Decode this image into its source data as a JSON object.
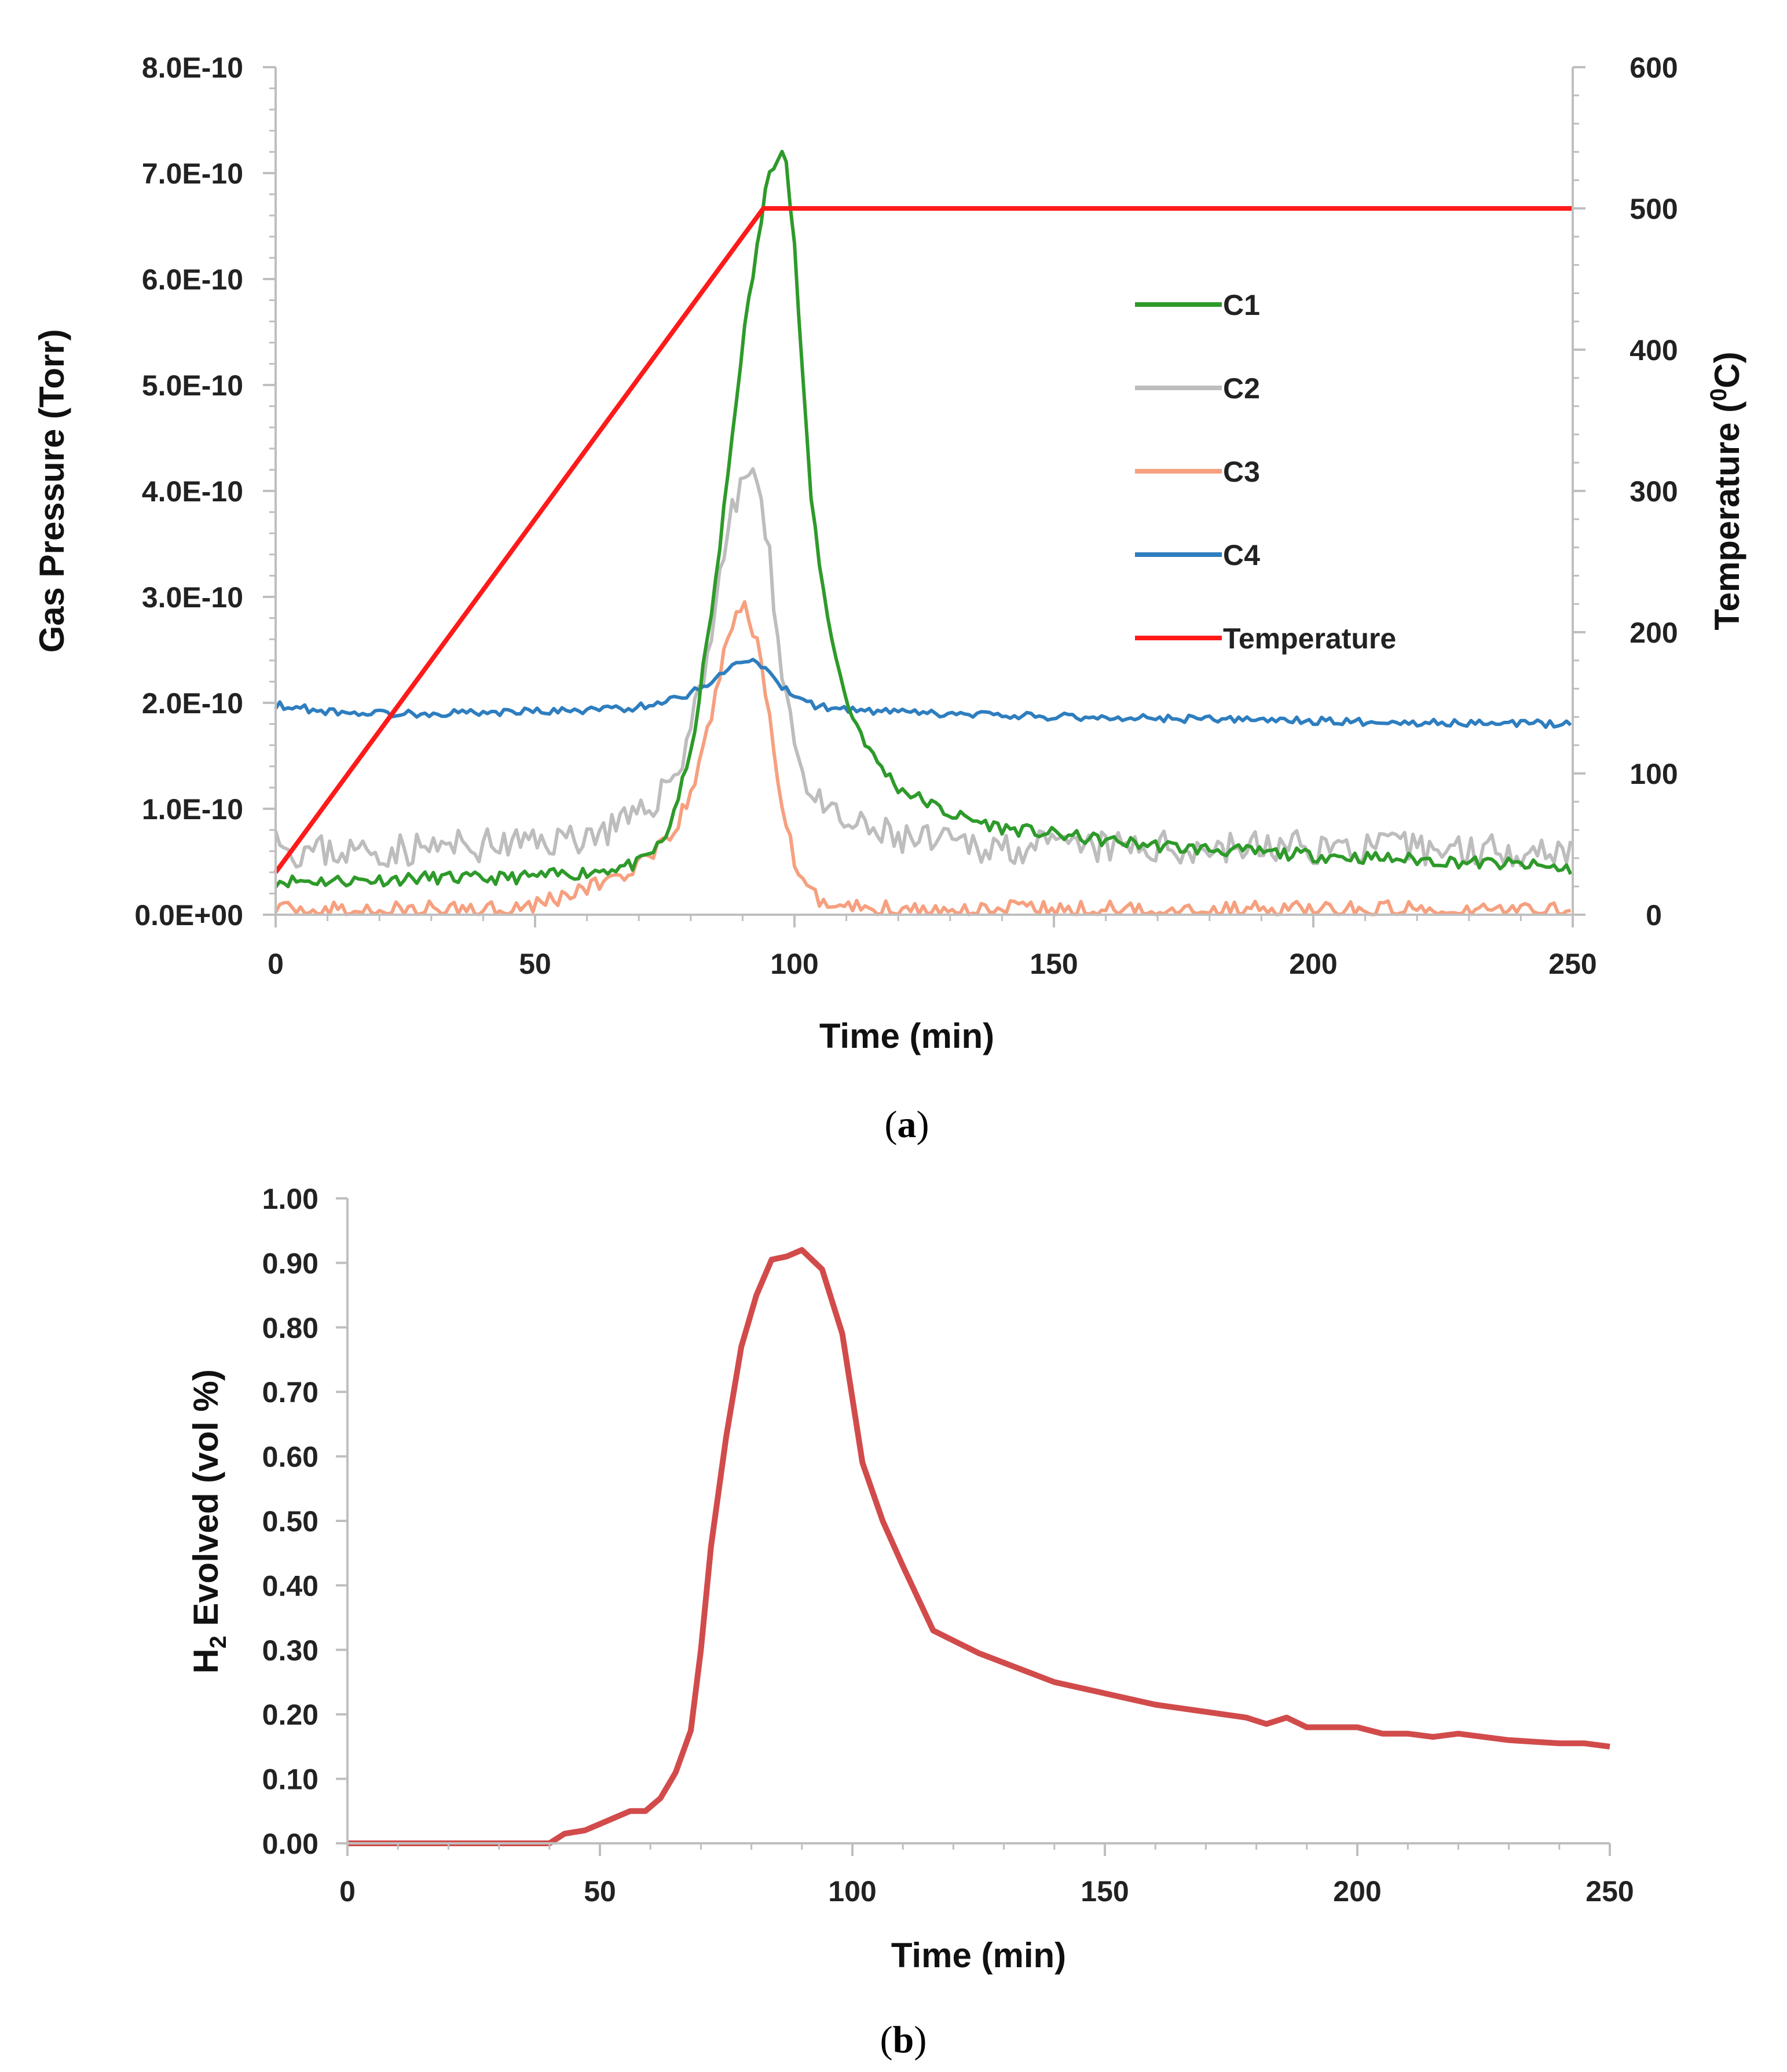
{
  "chart_data": [
    {
      "type": "line",
      "panel": "(a)",
      "caption_open": "(",
      "caption_letter": "a",
      "caption_close": ")",
      "xlabel": "Time (min)",
      "ylabel": "Gas Pressure (Torr)",
      "y2label_pre": "Temperature (",
      "y2label_sup": "0",
      "y2label_post": "C)",
      "xlim": [
        0,
        250
      ],
      "ylim": [
        0,
        8e-10
      ],
      "y2lim": [
        0,
        600
      ],
      "x_ticks": [
        0,
        50,
        100,
        150,
        200,
        250
      ],
      "y_ticks": [
        0,
        1e-10,
        2e-10,
        3e-10,
        4e-10,
        5e-10,
        6e-10,
        7e-10,
        8e-10
      ],
      "y_tick_labels": [
        "0.0E+00",
        "1.0E-10",
        "2.0E-10",
        "3.0E-10",
        "4.0E-10",
        "5.0E-10",
        "6.0E-10",
        "7.0E-10",
        "8.0E-10"
      ],
      "y2_ticks": [
        0,
        100,
        200,
        300,
        400,
        500,
        600
      ],
      "legend_position": "center-right",
      "series": [
        {
          "name": "C1",
          "axis": "left",
          "color": "#2e9a2a",
          "noise": 6e-12,
          "seed": 11,
          "x": [
            0,
            10,
            20,
            30,
            40,
            50,
            60,
            70,
            75,
            80,
            85,
            90,
            95,
            98,
            100,
            103,
            106,
            110,
            115,
            120,
            130,
            140,
            150,
            160,
            175,
            190,
            200,
            220,
            240,
            250
          ],
          "y": [
            3.2e-11,
            3.2e-11,
            3.3e-11,
            3.5e-11,
            3.4e-11,
            3.6e-11,
            4e-11,
            4.8e-11,
            7e-11,
            1.5e-10,
            3.2e-10,
            5.4e-10,
            7e-10,
            7.3e-10,
            6.3e-10,
            4e-10,
            2.9e-10,
            2e-10,
            1.5e-10,
            1.2e-10,
            9.5e-11,
            8.2e-11,
            7.6e-11,
            7e-11,
            6.3e-11,
            5.9e-11,
            5.6e-11,
            5.2e-11,
            4.7e-11,
            4.3e-11
          ]
        },
        {
          "name": "C2",
          "axis": "left",
          "color": "#bdbdbd",
          "noise": 1.6e-11,
          "seed": 23,
          "x": [
            0,
            2,
            10,
            20,
            30,
            40,
            50,
            60,
            70,
            78,
            83,
            87,
            90,
            92,
            95,
            98,
            101,
            105,
            110,
            120,
            130,
            150,
            175,
            200,
            225,
            250
          ],
          "y": [
            9.5e-11,
            6e-11,
            6e-11,
            6e-11,
            6.3e-11,
            6.5e-11,
            6.8e-11,
            7.5e-11,
            9e-11,
            1.4e-10,
            2.4e-10,
            3.6e-10,
            4.1e-10,
            4.25e-10,
            3.4e-10,
            2.2e-10,
            1.4e-10,
            1e-10,
            8.5e-11,
            7.2e-11,
            6.6e-11,
            6.3e-11,
            6.3e-11,
            6.4e-11,
            6.2e-11,
            6.2e-11
          ]
        },
        {
          "name": "C3",
          "axis": "left",
          "color": "#f6a07f",
          "noise": 9e-12,
          "seed": 37,
          "x": [
            0,
            10,
            20,
            30,
            40,
            50,
            60,
            70,
            75,
            80,
            84,
            87,
            89,
            91,
            93,
            95,
            97,
            99,
            101,
            105,
            110,
            120,
            140,
            160,
            180,
            200,
            220,
            250
          ],
          "y": [
            3e-12,
            3e-12,
            4e-12,
            4e-12,
            6e-12,
            1e-11,
            2.5e-11,
            4.5e-11,
            6.5e-11,
            1.1e-10,
            1.9e-10,
            2.6e-10,
            2.85e-10,
            2.88e-10,
            2.5e-10,
            1.9e-10,
            1.25e-10,
            7e-11,
            3e-11,
            1.4e-11,
            8e-12,
            5e-12,
            4e-12,
            4e-12,
            4e-12,
            4e-12,
            4e-12,
            4e-12
          ]
        },
        {
          "name": "C4",
          "axis": "left",
          "color": "#2e7ebf",
          "noise": 3.5e-12,
          "seed": 53,
          "x": [
            0,
            10,
            20,
            30,
            40,
            50,
            60,
            70,
            78,
            84,
            88,
            91,
            93,
            96,
            100,
            105,
            115,
            130,
            150,
            175,
            200,
            225,
            250
          ],
          "y": [
            1.98e-10,
            1.92e-10,
            1.9e-10,
            1.9e-10,
            1.91e-10,
            1.92e-10,
            1.93e-10,
            1.96e-10,
            2.05e-10,
            2.2e-10,
            2.35e-10,
            2.42e-10,
            2.38e-10,
            2.22e-10,
            2.05e-10,
            1.96e-10,
            1.92e-10,
            1.89e-10,
            1.87e-10,
            1.85e-10,
            1.83e-10,
            1.81e-10,
            1.8e-10
          ]
        },
        {
          "name": "Temperature",
          "axis": "right",
          "color": "#ff1a1a",
          "noise": 0,
          "seed": 0,
          "x": [
            0,
            94,
            250
          ],
          "y": [
            30,
            500,
            500
          ]
        }
      ]
    },
    {
      "type": "line",
      "panel": "(b)",
      "caption_open": "(",
      "caption_letter": "b",
      "caption_close": ")",
      "xlabel": "Time (min)",
      "ylabel_pre": "H",
      "ylabel_sub": "2",
      "ylabel_post": " Evolved (vol %)",
      "xlim": [
        0,
        250
      ],
      "ylim": [
        0,
        1.0
      ],
      "x_ticks": [
        0,
        50,
        100,
        150,
        200,
        250
      ],
      "y_ticks": [
        0,
        0.1,
        0.2,
        0.3,
        0.4,
        0.5,
        0.6,
        0.7,
        0.8,
        0.9,
        1.0
      ],
      "y_tick_labels": [
        "0.00",
        "0.10",
        "0.20",
        "0.30",
        "0.40",
        "0.50",
        "0.60",
        "0.70",
        "0.80",
        "0.90",
        "1.00"
      ],
      "series": [
        {
          "name": "H2",
          "color": "#d24b4b",
          "x": [
            0,
            40,
            43,
            47,
            50,
            53,
            56,
            59,
            62,
            65,
            68,
            70,
            72,
            75,
            78,
            81,
            84,
            87,
            90,
            94,
            98,
            102,
            106,
            110,
            116,
            125,
            140,
            160,
            178,
            182,
            186,
            190,
            200,
            205,
            210,
            215,
            220,
            230,
            240,
            245,
            250
          ],
          "y": [
            0,
            0,
            0.015,
            0.02,
            0.03,
            0.04,
            0.05,
            0.05,
            0.07,
            0.11,
            0.175,
            0.3,
            0.46,
            0.63,
            0.77,
            0.85,
            0.905,
            0.91,
            0.92,
            0.89,
            0.79,
            0.59,
            0.5,
            0.43,
            0.33,
            0.295,
            0.25,
            0.215,
            0.195,
            0.185,
            0.195,
            0.18,
            0.18,
            0.17,
            0.17,
            0.165,
            0.17,
            0.16,
            0.155,
            0.155,
            0.15
          ]
        }
      ]
    }
  ]
}
